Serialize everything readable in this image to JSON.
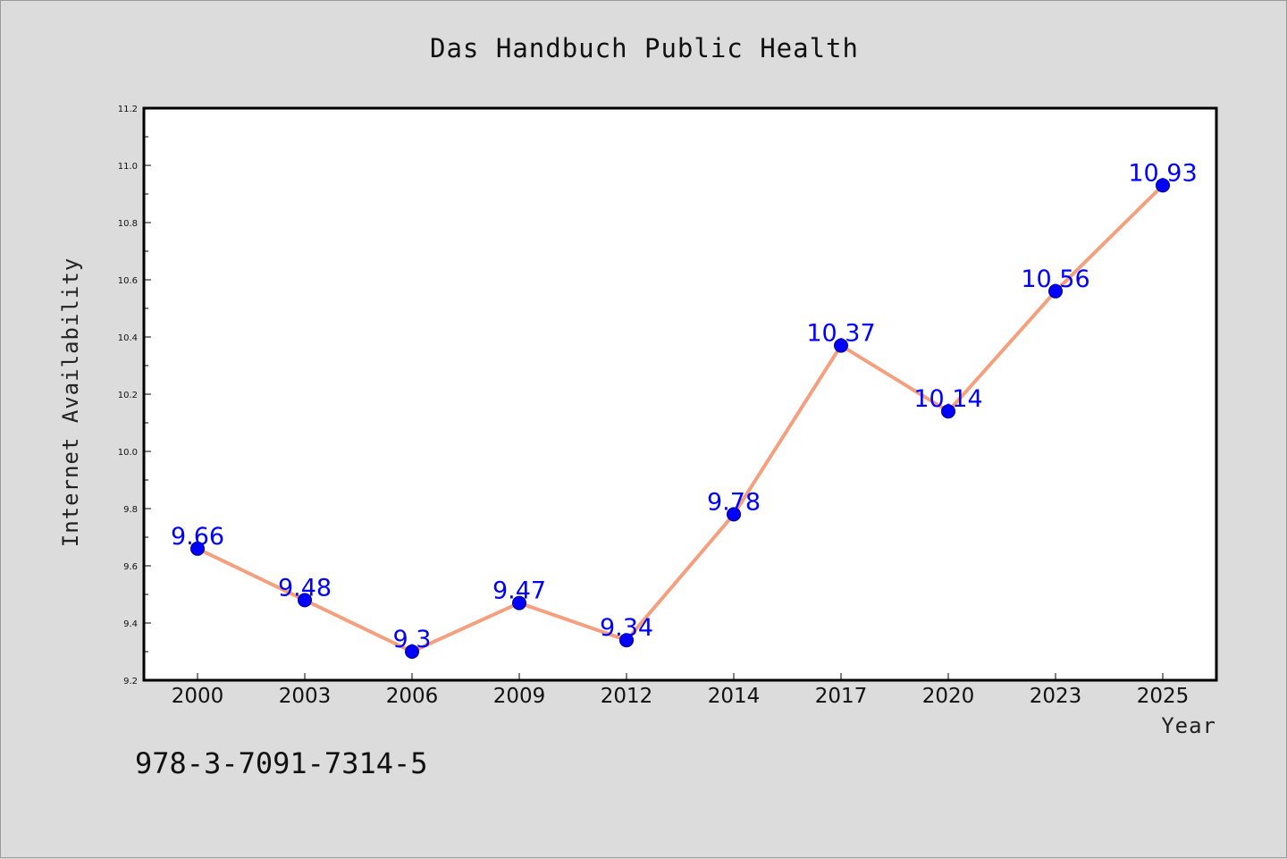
{
  "colors": {
    "background": "#dcdcdc",
    "plot_area": "#ffffff",
    "line": "#f4a07f",
    "marker_fill": "#0000ff",
    "marker_edge": "#000080",
    "data_label": "#0000ff"
  },
  "isbn": "978-3-7091-7314-5",
  "chart_data": {
    "type": "line",
    "title": "Das Handbuch Public Health",
    "xlabel": "Year",
    "ylabel": "Internet Availability",
    "categories": [
      "2000",
      "2003",
      "2006",
      "2009",
      "2012",
      "2014",
      "2017",
      "2020",
      "2023",
      "2025"
    ],
    "series": [
      {
        "values": [
          9.66,
          9.48,
          9.3,
          9.47,
          9.34,
          9.78,
          10.37,
          10.14,
          10.56,
          10.93
        ],
        "labels": [
          "9.66",
          "9.48",
          "9.3",
          "9.47",
          "9.34",
          "9.78",
          "10.37",
          "10.14",
          "10.56",
          "10.93"
        ]
      }
    ],
    "ylim": [
      9.2,
      11.2
    ],
    "yticks": [
      "9.2",
      "9.4",
      "9.6",
      "9.8",
      "10.0",
      "10.2",
      "10.4",
      "10.6",
      "10.8",
      "11.0",
      "11.2"
    ],
    "grid": false,
    "legend": "none"
  }
}
